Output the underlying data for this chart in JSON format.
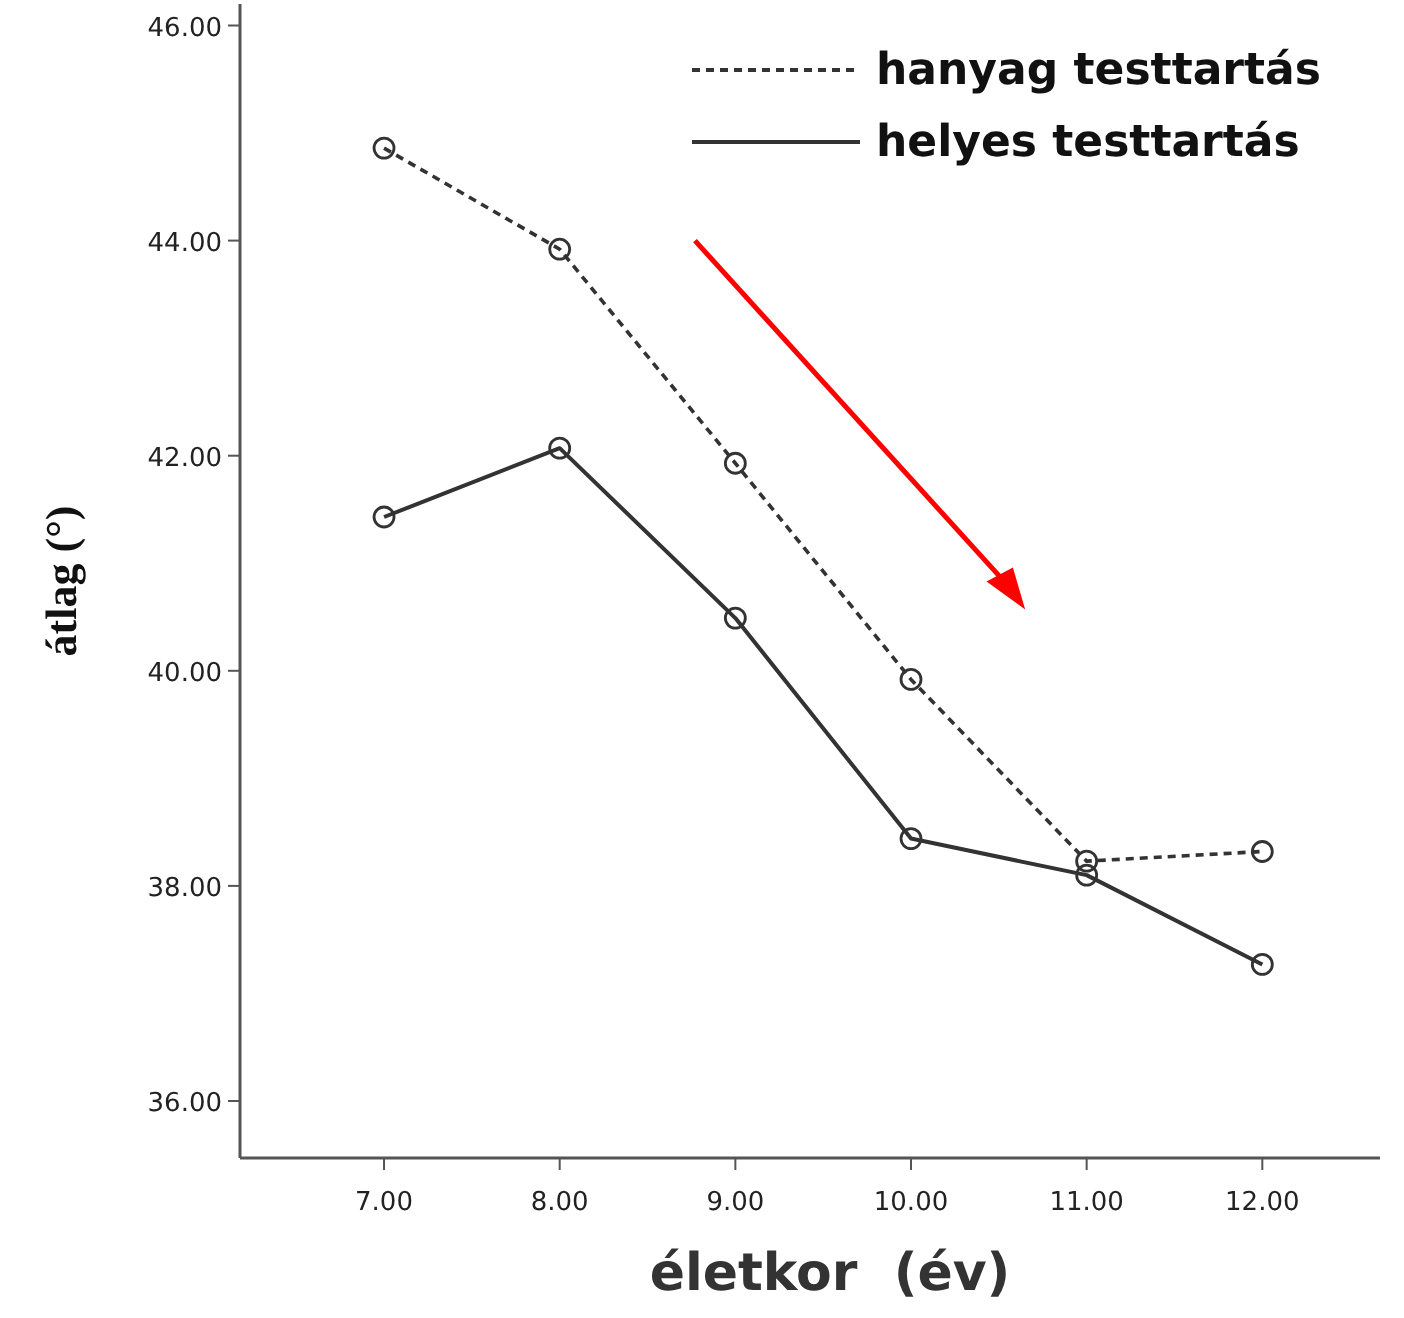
{
  "chart_data": {
    "type": "line",
    "xlabel": "életkor  (év)",
    "ylabel": "átlag (°)",
    "x": [
      7,
      8,
      9,
      10,
      11,
      12
    ],
    "series": [
      {
        "name": "hanyag testtartás",
        "color": "#333333",
        "line_style": "dashed",
        "values": [
          44.86,
          43.92,
          41.93,
          39.92,
          38.23,
          38.32
        ]
      },
      {
        "name": "helyes testtartás",
        "color": "#333333",
        "line_style": "solid",
        "values": [
          41.43,
          42.07,
          40.49,
          38.44,
          38.1,
          37.27
        ]
      }
    ],
    "xlim": [
      6.18,
      12.67
    ],
    "ylim": [
      35.47,
      46.2
    ],
    "xticks": [
      {
        "value": 7,
        "label": "7.00"
      },
      {
        "value": 8,
        "label": "8.00"
      },
      {
        "value": 9,
        "label": "9.00"
      },
      {
        "value": 10,
        "label": "10.00"
      },
      {
        "value": 11,
        "label": "11.00"
      },
      {
        "value": 12,
        "label": "12.00"
      }
    ],
    "yticks": [
      {
        "value": 36,
        "label": "36.00"
      },
      {
        "value": 38,
        "label": "38.00"
      },
      {
        "value": 40,
        "label": "40.00"
      },
      {
        "value": 42,
        "label": "42.00"
      },
      {
        "value": 44,
        "label": "44.00"
      },
      {
        "value": 46,
        "label": "46.00"
      }
    ],
    "marker": "circle",
    "legend": "top right",
    "grid": false
  }
}
